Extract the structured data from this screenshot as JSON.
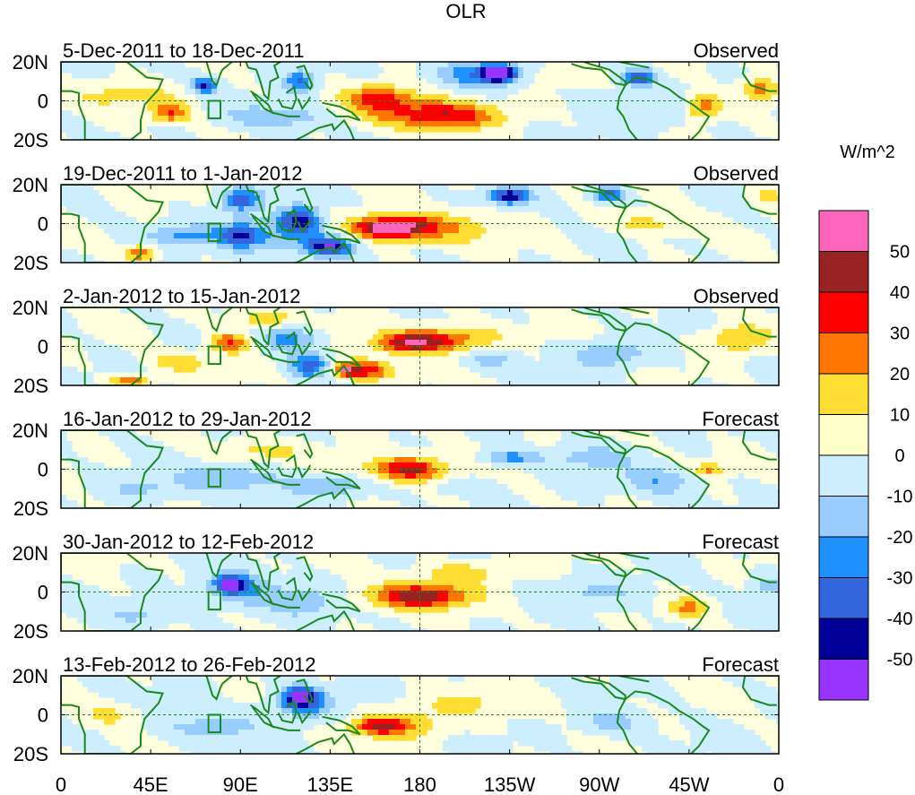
{
  "chart_data": {
    "type": "heatmap",
    "title": "OLR",
    "units": "W/m^2",
    "x_ticks": [
      "0",
      "45E",
      "90E",
      "135E",
      "180",
      "135W",
      "90W",
      "45W",
      "0"
    ],
    "x_tick_values": [
      0,
      45,
      90,
      135,
      180,
      225,
      270,
      315,
      360
    ],
    "y_ticks": [
      "20N",
      "0",
      "20S"
    ],
    "y_tick_values": [
      20,
      0,
      -20
    ],
    "xlim": [
      0,
      360
    ],
    "ylim": [
      -20,
      20
    ],
    "colorbar": {
      "labels": [
        "50",
        "40",
        "30",
        "20",
        "10",
        "0",
        "-10",
        "-20",
        "-30",
        "-40",
        "-50"
      ],
      "levels": [
        -50,
        -40,
        -30,
        -20,
        -10,
        0,
        10,
        20,
        30,
        40,
        50
      ],
      "colors": [
        "#9933ff",
        "#000099",
        "#3366dd",
        "#1e90ff",
        "#99ccff",
        "#cceeff",
        "#ffffcc",
        "#ffdd33",
        "#ff7700",
        "#ff0000",
        "#992222",
        "#ff66bb"
      ]
    },
    "panels": [
      {
        "period": "5-Dec-2011 to 18-Dec-2011",
        "source": "Observed",
        "features": [
          {
            "lon": 220,
            "lat": 14,
            "value": -55,
            "rlon": 8,
            "rlat": 4
          },
          {
            "lon": 210,
            "lat": 14,
            "value": -30,
            "rlon": 20,
            "rlat": 7
          },
          {
            "lon": 160,
            "lat": 2,
            "value": 25,
            "rlon": 14,
            "rlat": 6
          },
          {
            "lon": 195,
            "lat": -8,
            "value": 30,
            "rlon": 26,
            "rlat": 6
          },
          {
            "lon": 175,
            "lat": -4,
            "value": 20,
            "rlon": 35,
            "rlat": 9
          },
          {
            "lon": 250,
            "lat": 14,
            "value": 12,
            "rlon": 16,
            "rlat": 5
          },
          {
            "lon": 322,
            "lat": -3,
            "value": 30,
            "rlon": 10,
            "rlat": 7
          },
          {
            "lon": 350,
            "lat": 6,
            "value": 25,
            "rlon": 10,
            "rlat": 5
          },
          {
            "lon": 55,
            "lat": -6,
            "value": 30,
            "rlon": 10,
            "rlat": 5
          },
          {
            "lon": 32,
            "lat": 3,
            "value": 12,
            "rlon": 28,
            "rlat": 6
          },
          {
            "lon": 120,
            "lat": 10,
            "value": -30,
            "rlon": 8,
            "rlat": 6
          },
          {
            "lon": 72,
            "lat": 8,
            "value": -40,
            "rlon": 6,
            "rlat": 4
          },
          {
            "lon": 290,
            "lat": 12,
            "value": -40,
            "rlon": 8,
            "rlat": 4
          },
          {
            "lon": 110,
            "lat": -8,
            "value": -20,
            "rlon": 25,
            "rlat": 6
          },
          {
            "lon": 290,
            "lat": -4,
            "value": -8,
            "rlon": 40,
            "rlat": 10
          }
        ]
      },
      {
        "period": "19-Dec-2011 to 1-Jan-2012",
        "source": "Observed",
        "features": [
          {
            "lon": 165,
            "lat": -2,
            "value": 45,
            "rlon": 18,
            "rlat": 5
          },
          {
            "lon": 160,
            "lat": -3,
            "value": 55,
            "rlon": 3,
            "rlat": 2
          },
          {
            "lon": 180,
            "lat": -2,
            "value": 25,
            "rlon": 35,
            "rlat": 8
          },
          {
            "lon": 225,
            "lat": 14,
            "value": -48,
            "rlon": 10,
            "rlat": 4
          },
          {
            "lon": 275,
            "lat": 15,
            "value": -40,
            "rlon": 8,
            "rlat": 4
          },
          {
            "lon": 120,
            "lat": 2,
            "value": -40,
            "rlon": 10,
            "rlat": 7
          },
          {
            "lon": 90,
            "lat": 12,
            "value": -35,
            "rlon": 10,
            "rlat": 6
          },
          {
            "lon": 90,
            "lat": -6,
            "value": -30,
            "rlon": 10,
            "rlat": 6
          },
          {
            "lon": 135,
            "lat": -12,
            "value": -45,
            "rlon": 12,
            "rlat": 5
          },
          {
            "lon": 108,
            "lat": -6,
            "value": -20,
            "rlon": 30,
            "rlat": 9
          },
          {
            "lon": 40,
            "lat": -15,
            "value": 30,
            "rlon": 8,
            "rlat": 4
          },
          {
            "lon": 62,
            "lat": -6,
            "value": -20,
            "rlon": 18,
            "rlat": 5
          },
          {
            "lon": 295,
            "lat": 0,
            "value": 15,
            "rlon": 20,
            "rlat": 5
          },
          {
            "lon": 355,
            "lat": 14,
            "value": 15,
            "rlon": 8,
            "rlat": 5
          }
        ]
      },
      {
        "period": "2-Jan-2012 to 15-Jan-2012",
        "source": "Observed",
        "features": [
          {
            "lon": 175,
            "lat": 2,
            "value": 40,
            "rlon": 18,
            "rlat": 5
          },
          {
            "lon": 195,
            "lat": 4,
            "value": 25,
            "rlon": 25,
            "rlat": 7
          },
          {
            "lon": 150,
            "lat": -12,
            "value": 40,
            "rlon": 15,
            "rlat": 5
          },
          {
            "lon": 143,
            "lat": -12,
            "value": 55,
            "rlon": 3,
            "rlat": 2
          },
          {
            "lon": 85,
            "lat": 2,
            "value": 30,
            "rlon": 10,
            "rlat": 5
          },
          {
            "lon": 35,
            "lat": -18,
            "value": 30,
            "rlon": 10,
            "rlat": 3
          },
          {
            "lon": 125,
            "lat": -10,
            "value": -35,
            "rlon": 10,
            "rlat": 6
          },
          {
            "lon": 115,
            "lat": 4,
            "value": -25,
            "rlon": 14,
            "rlat": 6
          },
          {
            "lon": 340,
            "lat": 4,
            "value": 20,
            "rlon": 15,
            "rlat": 7
          },
          {
            "lon": 275,
            "lat": -4,
            "value": -20,
            "rlon": 18,
            "rlat": 7
          },
          {
            "lon": 215,
            "lat": -6,
            "value": -15,
            "rlon": 14,
            "rlat": 6
          },
          {
            "lon": 60,
            "lat": -8,
            "value": 15,
            "rlon": 15,
            "rlat": 5
          },
          {
            "lon": 100,
            "lat": 14,
            "value": 15,
            "rlon": 20,
            "rlat": 5
          }
        ]
      },
      {
        "period": "16-Jan-2012 to 29-Jan-2012",
        "source": "Forecast",
        "features": [
          {
            "lon": 175,
            "lat": 0,
            "value": 28,
            "rlon": 14,
            "rlat": 5
          },
          {
            "lon": 168,
            "lat": 0,
            "value": 18,
            "rlon": 30,
            "rlat": 8
          },
          {
            "lon": 135,
            "lat": -8,
            "value": -22,
            "rlon": 20,
            "rlat": 6
          },
          {
            "lon": 85,
            "lat": -5,
            "value": -20,
            "rlon": 25,
            "rlat": 7
          },
          {
            "lon": 225,
            "lat": 6,
            "value": -25,
            "rlon": 15,
            "rlat": 4
          },
          {
            "lon": 265,
            "lat": 6,
            "value": -15,
            "rlon": 20,
            "rlat": 6
          },
          {
            "lon": 300,
            "lat": -6,
            "value": -18,
            "rlon": 18,
            "rlat": 7
          },
          {
            "lon": 325,
            "lat": 0,
            "value": 22,
            "rlon": 8,
            "rlat": 3
          },
          {
            "lon": 100,
            "lat": 10,
            "value": 12,
            "rlon": 25,
            "rlat": 5
          },
          {
            "lon": 40,
            "lat": -10,
            "value": -12,
            "rlon": 18,
            "rlat": 6
          },
          {
            "lon": 200,
            "lat": -8,
            "value": -8,
            "rlon": 20,
            "rlat": 5
          }
        ]
      },
      {
        "period": "30-Jan-2012 to 12-Feb-2012",
        "source": "Forecast",
        "features": [
          {
            "lon": 180,
            "lat": -2,
            "value": 30,
            "rlon": 18,
            "rlat": 5
          },
          {
            "lon": 178,
            "lat": -2,
            "value": 20,
            "rlon": 35,
            "rlat": 7
          },
          {
            "lon": 85,
            "lat": 4,
            "value": -45,
            "rlon": 6,
            "rlat": 4
          },
          {
            "lon": 88,
            "lat": 2,
            "value": -25,
            "rlon": 16,
            "rlat": 9
          },
          {
            "lon": 120,
            "lat": -4,
            "value": -18,
            "rlon": 20,
            "rlat": 8
          },
          {
            "lon": 200,
            "lat": 10,
            "value": 15,
            "rlon": 22,
            "rlat": 6
          },
          {
            "lon": 315,
            "lat": -8,
            "value": 20,
            "rlon": 10,
            "rlat": 5
          },
          {
            "lon": 270,
            "lat": 0,
            "value": -12,
            "rlon": 25,
            "rlat": 7
          },
          {
            "lon": 40,
            "lat": -12,
            "value": -12,
            "rlon": 18,
            "rlat": 5
          },
          {
            "lon": 355,
            "lat": 4,
            "value": -15,
            "rlon": 8,
            "rlat": 5
          }
        ]
      },
      {
        "period": "13-Feb-2012 to 26-Feb-2012",
        "source": "Forecast",
        "features": [
          {
            "lon": 120,
            "lat": 9,
            "value": -42,
            "rlon": 8,
            "rlat": 5
          },
          {
            "lon": 122,
            "lat": 6,
            "value": -25,
            "rlon": 16,
            "rlat": 8
          },
          {
            "lon": 160,
            "lat": -6,
            "value": 28,
            "rlon": 12,
            "rlat": 4
          },
          {
            "lon": 168,
            "lat": -5,
            "value": 18,
            "rlon": 25,
            "rlat": 7
          },
          {
            "lon": 75,
            "lat": -6,
            "value": -15,
            "rlon": 25,
            "rlat": 7
          },
          {
            "lon": 200,
            "lat": 6,
            "value": 10,
            "rlon": 30,
            "rlat": 8
          },
          {
            "lon": 275,
            "lat": -4,
            "value": -15,
            "rlon": 16,
            "rlat": 6
          },
          {
            "lon": 25,
            "lat": 0,
            "value": 12,
            "rlon": 15,
            "rlat": 6
          }
        ]
      }
    ]
  }
}
